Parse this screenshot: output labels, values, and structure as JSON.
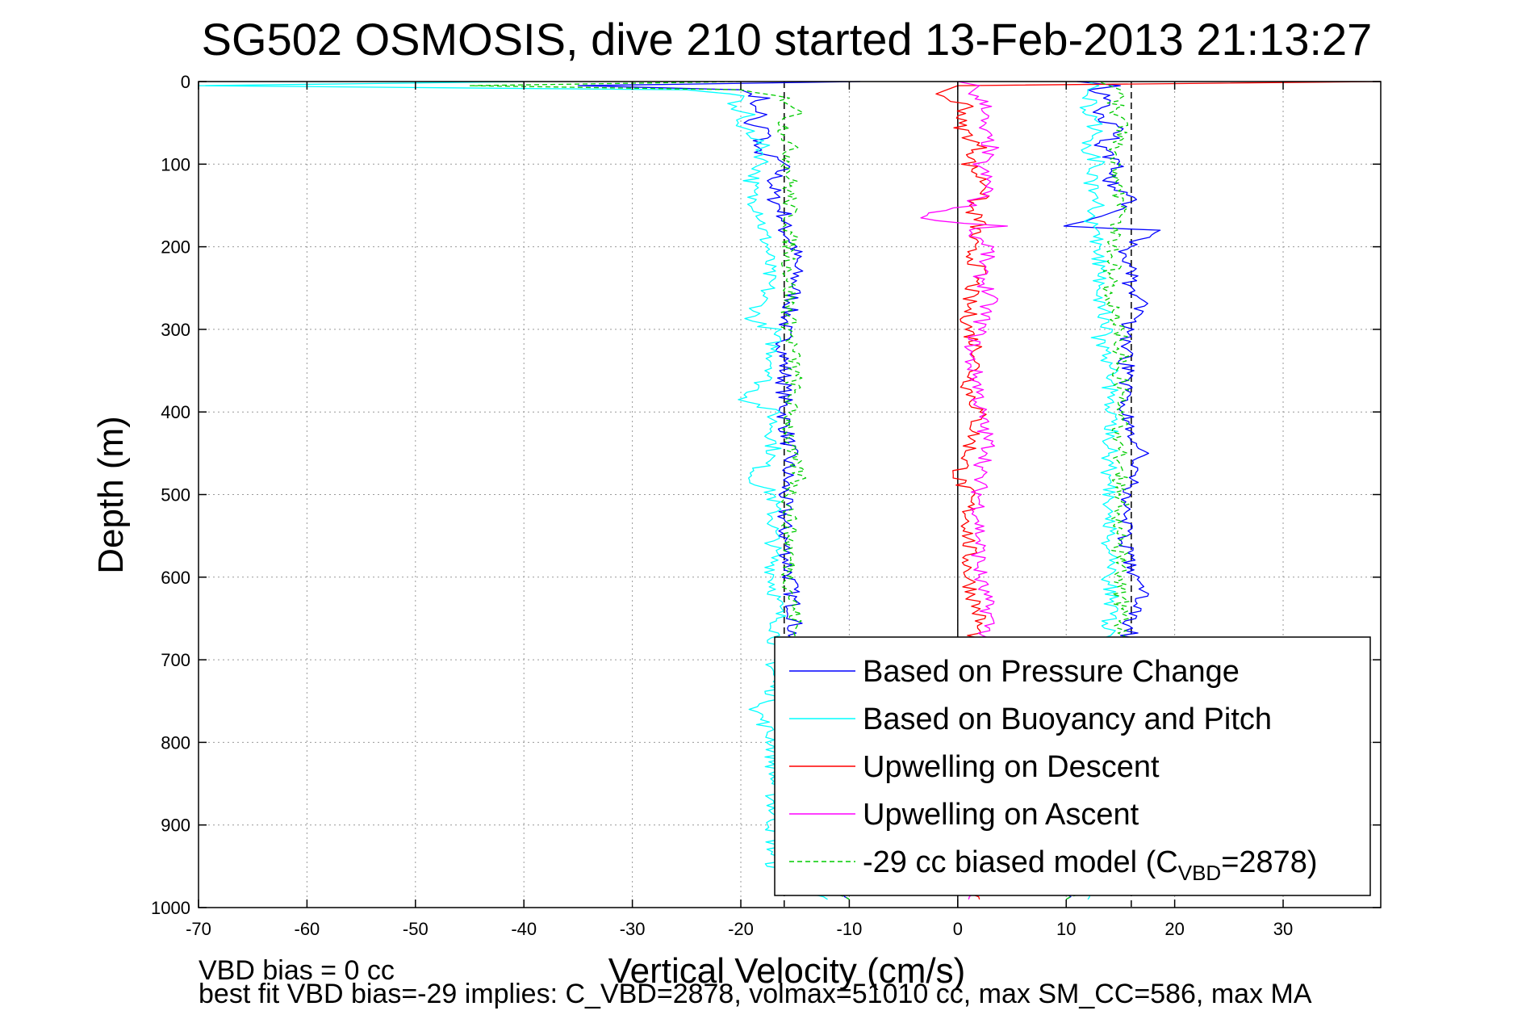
{
  "chart_data": {
    "type": "line",
    "title": "SG502 OSMOSIS, dive 210 started 13-Feb-2013 21:13:27",
    "xlabel": "Vertical Velocity (cm/s)",
    "ylabel": "Depth (m)",
    "xlim": [
      -70,
      39
    ],
    "ylim": [
      0,
      1000
    ],
    "y_reversed": true,
    "grid": true,
    "legend_position": "bottom-right",
    "x_ticks": [
      -70,
      -60,
      -50,
      -40,
      -30,
      -20,
      -10,
      0,
      10,
      20,
      30
    ],
    "x_tick_labels": [
      "-70",
      "-60",
      "-50",
      "-40",
      "-30",
      "-20",
      "-10",
      "0",
      "10",
      "20",
      "30"
    ],
    "y_ticks": [
      0,
      100,
      200,
      300,
      400,
      500,
      600,
      700,
      800,
      900,
      1000
    ],
    "y_tick_labels": [
      "0",
      "100",
      "200",
      "300",
      "400",
      "500",
      "600",
      "700",
      "800",
      "900",
      "1000"
    ],
    "reference_lines": [
      {
        "x": -16,
        "style": "dashed",
        "color": "#000000"
      },
      {
        "x": 0,
        "style": "solid",
        "color": "#000000"
      },
      {
        "x": 16,
        "style": "dashed",
        "color": "#000000"
      }
    ],
    "series": [
      {
        "name": "Based on Pressure Change",
        "color": "#0000ff",
        "segments": [
          {
            "depth": [
              0,
              5,
              10,
              15,
              20,
              30,
              40,
              50,
              60,
              80,
              100,
              120,
              140,
              160,
              180,
              200,
              250,
              300,
              350,
              400,
              450,
              500,
              550,
              600,
              650,
              700,
              750,
              800,
              850,
              900,
              950,
              990
            ],
            "velocity": [
              -9,
              -35,
              -20,
              -19,
              -18,
              -19,
              -18,
              -20,
              -17,
              -19,
              -16,
              -17,
              -17,
              -16,
              -16,
              -15,
              -15,
              -16,
              -16,
              -16,
              -15.5,
              -16,
              -16,
              -15.5,
              -15,
              -15.5,
              -15.5,
              -15.5,
              -15.5,
              -15.5,
              -15.5,
              -10
            ]
          },
          {
            "depth": [
              990,
              950,
              900,
              850,
              800,
              750,
              700,
              650,
              620,
              600,
              550,
              500,
              450,
              400,
              350,
              300,
              275,
              250,
              200,
              180,
              175,
              160,
              140,
              120,
              100,
              80,
              60,
              40,
              20,
              10,
              5,
              0
            ],
            "velocity": [
              10,
              15.5,
              15.5,
              15.5,
              15.5,
              15.5,
              15.5,
              16,
              17,
              16,
              15.5,
              15.5,
              17,
              15.5,
              15.5,
              15.5,
              17,
              16,
              15.5,
              19,
              10,
              14,
              16,
              14,
              15,
              13,
              15,
              13,
              14,
              12,
              15,
              11
            ]
          }
        ]
      },
      {
        "name": "Based on Buoyancy and Pitch",
        "color": "#00ffff",
        "segments": [
          {
            "depth": [
              0,
              5,
              10,
              15,
              20,
              30,
              40,
              50,
              60,
              80,
              100,
              120,
              140,
              160,
              180,
              200,
              250,
              290,
              300,
              350,
              385,
              400,
              450,
              480,
              500,
              550,
              600,
              650,
              700,
              750,
              760,
              800,
              850,
              900,
              950,
              990
            ],
            "velocity": [
              -40,
              -70,
              -25,
              -21,
              -20,
              -21,
              -19,
              -21,
              -19,
              -18,
              -18,
              -19,
              -19,
              -18,
              -18,
              -17.5,
              -17.5,
              -19,
              -17,
              -17,
              -19.5,
              -17,
              -17,
              -19,
              -17,
              -17,
              -17,
              -16.5,
              -17,
              -17,
              -18.5,
              -17,
              -17,
              -17,
              -17,
              -12
            ]
          },
          {
            "depth": [
              990,
              950,
              900,
              850,
              800,
              750,
              700,
              650,
              600,
              550,
              500,
              450,
              400,
              350,
              310,
              300,
              250,
              200,
              160,
              150,
              120,
              100,
              80,
              60,
              40,
              20,
              10,
              5,
              0
            ],
            "velocity": [
              12,
              14,
              14,
              14,
              14,
              14,
              14,
              14,
              14,
              14,
              14,
              14,
              14,
              14,
              13,
              14,
              13,
              13,
              12,
              13,
              12,
              13,
              12,
              13,
              12,
              12,
              12,
              13,
              12
            ]
          }
        ]
      },
      {
        "name": "Upwelling on Descent",
        "color": "#ff0000",
        "segments": [
          {
            "depth": [
              0,
              5,
              15,
              30,
              50,
              80,
              100,
              130,
              150,
              170,
              200,
              230,
              260,
              300,
              330,
              370,
              400,
              450,
              480,
              500,
              550,
              600,
              650,
              700,
              750,
              800,
              850,
              900,
              950,
              990
            ],
            "velocity": [
              39,
              0,
              -2,
              1,
              0,
              2,
              1,
              3,
              1,
              2,
              1,
              2,
              1,
              1,
              2,
              1,
              2,
              1,
              0,
              1,
              1,
              1,
              2,
              1,
              1,
              1,
              1,
              1,
              1,
              2
            ]
          }
        ]
      },
      {
        "name": "Upwelling on Ascent",
        "color": "#ff00ff",
        "segments": [
          {
            "depth": [
              0,
              5,
              15,
              30,
              50,
              80,
              100,
              130,
              150,
              165,
              175,
              180,
              190,
              200,
              230,
              260,
              300,
              330,
              370,
              400,
              450,
              470,
              500,
              550,
              600,
              650,
              700,
              750,
              800,
              850,
              900,
              950,
              990
            ],
            "velocity": [
              0,
              2,
              1,
              3,
              2,
              3,
              2,
              3,
              1,
              -4,
              4,
              1,
              2,
              3,
              2,
              3,
              2,
              1,
              2,
              2,
              3,
              2,
              2,
              2,
              2,
              3,
              2,
              2,
              2,
              2,
              2,
              2,
              1
            ]
          }
        ]
      },
      {
        "name": "-29 cc biased model (C",
        "name_subscript": "VBD",
        "name_suffix": "=2878)",
        "color": "#00cc00",
        "style": "dashed",
        "segments": [
          {
            "depth": [
              0,
              5,
              10,
              20,
              35,
              50,
              80,
              100,
              150,
              200,
              250,
              300,
              350,
              400,
              450,
              480,
              500,
              550,
              600,
              650,
              700,
              750,
              800,
              850,
              900,
              950,
              990
            ],
            "velocity": [
              -20,
              -45,
              -20,
              -16,
              -14.5,
              -16,
              -15.5,
              -15.5,
              -15.5,
              -15.5,
              -15.5,
              -15.5,
              -15,
              -15.5,
              -15.5,
              -14.5,
              -15.5,
              -15.5,
              -15.5,
              -15,
              -15,
              -15,
              -15,
              -15,
              -15,
              -15,
              -10
            ]
          },
          {
            "depth": [
              990,
              950,
              900,
              850,
              800,
              750,
              700,
              650,
              600,
              550,
              500,
              450,
              400,
              350,
              300,
              250,
              200,
              150,
              100,
              50,
              20,
              10,
              5,
              0
            ],
            "velocity": [
              10,
              15,
              15,
              15,
              15,
              15,
              15,
              15,
              15,
              15,
              15,
              15,
              15,
              15,
              15,
              14,
              14.5,
              15,
              14.5,
              15,
              14.5,
              15,
              14,
              13
            ]
          }
        ]
      }
    ]
  },
  "footer": {
    "line1": "VBD bias = 0 cc",
    "line2": "best fit VBD bias=-29 implies: C_VBD=2878, volmax=51010 cc, max SM_CC=586, max MA"
  }
}
